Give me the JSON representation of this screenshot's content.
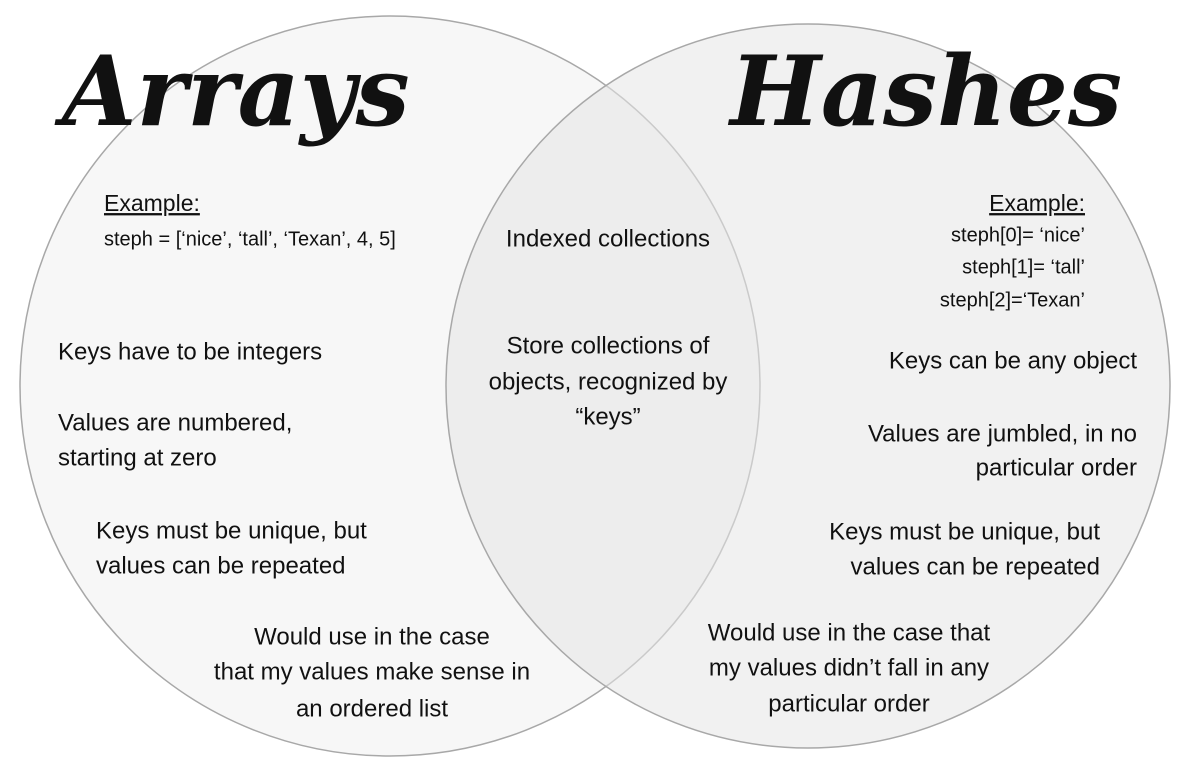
{
  "left": {
    "title": "Arrays",
    "example_label": "Example:",
    "example": [
      "steph = [‘nice’, ‘tall’, ‘Texan’, 4, 5]"
    ],
    "items": [
      [
        "Keys have to be integers"
      ],
      [
        "Values are numbered,",
        "starting at zero"
      ],
      [
        "Keys must be unique, but",
        "values can be repeated"
      ],
      [
        "Would use in the case",
        "that my values make sense in",
        "an ordered list"
      ]
    ]
  },
  "center": {
    "items": [
      [
        "Indexed collections"
      ],
      [
        "Store collections of",
        "objects, recognized by",
        "“keys”"
      ]
    ]
  },
  "right": {
    "title": "Hashes",
    "example_label": "Example:",
    "example": [
      "steph[0]= ‘nice’",
      "steph[1]= ‘tall’",
      "steph[2]=‘Texan’"
    ],
    "items": [
      [
        "Keys can be any object"
      ],
      [
        "Values are jumbled, in no",
        "particular order"
      ],
      [
        "Keys must be unique, but",
        "values can be repeated"
      ],
      [
        "Would use in the case that",
        "my values didn’t fall in any",
        "particular order"
      ]
    ]
  }
}
